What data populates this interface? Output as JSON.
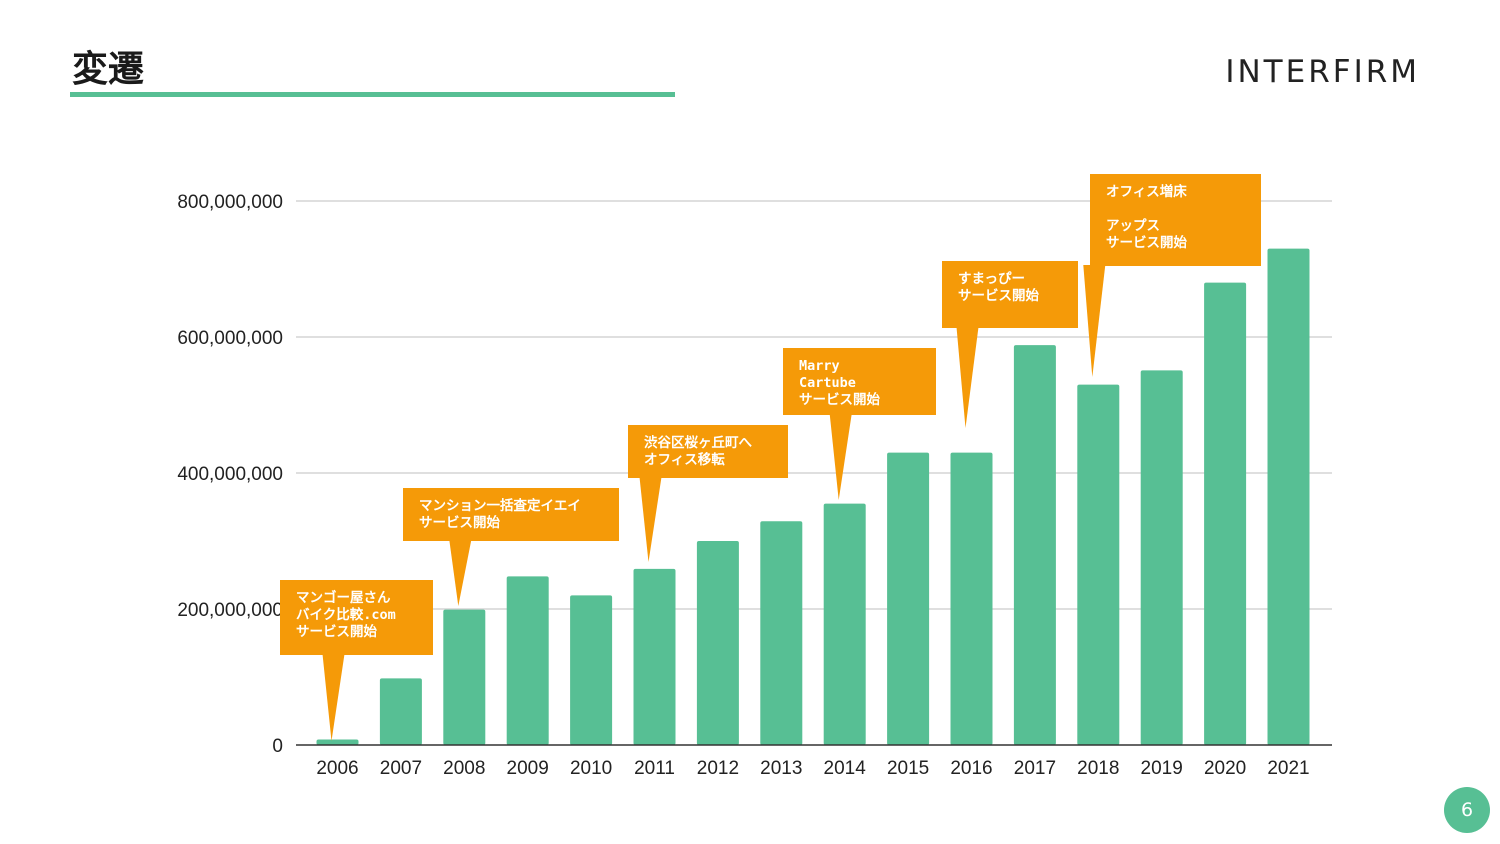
{
  "slide": {
    "title": "変遷",
    "brand": "INTERFIRM",
    "page_number": "6"
  },
  "colors": {
    "bar": "#57bf94",
    "accent": "#57bf94",
    "callout": "#f59a08",
    "grid": "#cccccc",
    "axis": "#333333"
  },
  "chart_data": {
    "type": "bar",
    "categories": [
      "2006",
      "2007",
      "2008",
      "2009",
      "2010",
      "2011",
      "2012",
      "2013",
      "2014",
      "2015",
      "2016",
      "2017",
      "2018",
      "2019",
      "2020",
      "2021"
    ],
    "values": [
      8000000,
      98000000,
      199000000,
      248000000,
      220000000,
      259000000,
      300000000,
      329000000,
      355000000,
      430000000,
      430000000,
      588000000,
      530000000,
      551000000,
      680000000,
      730000000
    ],
    "ylim": [
      0,
      800000000
    ],
    "yticks": [
      0,
      200000000,
      400000000,
      600000000,
      800000000
    ],
    "ytick_labels": [
      "0",
      "200,000,000",
      "400,000,000",
      "600,000,000",
      "800,000,000"
    ],
    "grid": true,
    "annotations": [
      {
        "year": "2006",
        "lines": [
          "マンゴー屋さん",
          "バイク比較.com",
          "サービス開始"
        ]
      },
      {
        "year": "2008",
        "lines": [
          "マンション一括査定イエイ",
          "サービス開始"
        ]
      },
      {
        "year": "2011",
        "lines": [
          "渋谷区桜ヶ丘町へ",
          "オフィス移転"
        ]
      },
      {
        "year": "2014",
        "lines": [
          "Marry",
          "Cartube",
          "サービス開始"
        ]
      },
      {
        "year": "2016",
        "lines": [
          "すまっぴー",
          "サービス開始"
        ]
      },
      {
        "year": "2018",
        "lines": [
          "オフィス増床",
          "",
          "アップス",
          "サービス開始"
        ]
      }
    ]
  }
}
